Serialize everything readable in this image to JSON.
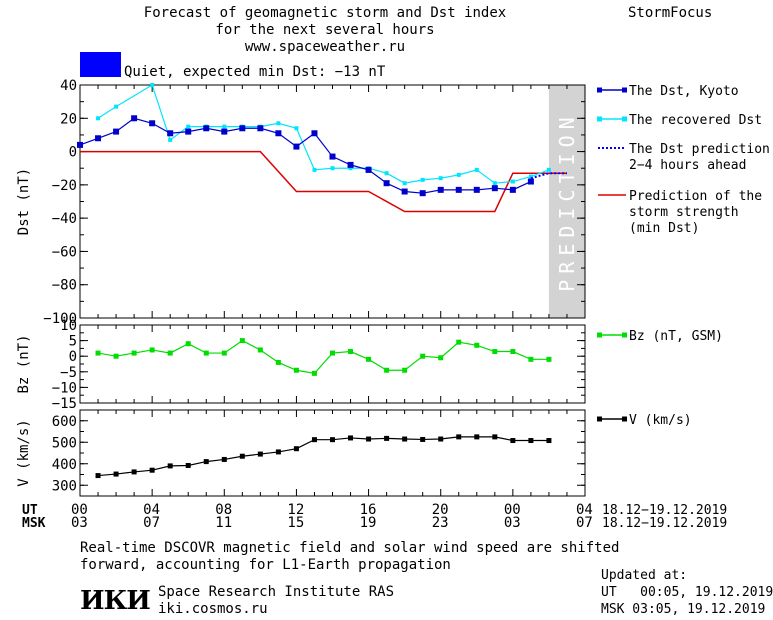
{
  "header": {
    "title_line1": "Forecast of geomagnetic storm and Dst index",
    "title_line2": "for the next several hours",
    "url": "www.spaceweather.ru",
    "brand": "StormFocus"
  },
  "status": {
    "text": "Quiet, expected min Dst: −13 nT",
    "color": "#0000ff"
  },
  "legends": {
    "dst_kyoto": "The Dst, Kyoto",
    "recovered": "The recovered Dst",
    "prediction_l1": "The Dst prediction",
    "prediction_l2": "2−4 hours ahead",
    "storm_l1": "Prediction of the",
    "storm_l2": "storm strength",
    "storm_l3": "(min Dst)",
    "bz": "Bz (nT, GSM)",
    "v": "V (km/s)"
  },
  "prediction_label": "PREDICTION",
  "time_axis": {
    "ut_label": "UT",
    "msk_label": "MSK",
    "ut_ticks": [
      "00",
      "04",
      "08",
      "12",
      "16",
      "20",
      "00",
      "04"
    ],
    "msk_ticks": [
      "03",
      "07",
      "11",
      "15",
      "19",
      "23",
      "03",
      "07"
    ],
    "range_ut": "18.12−19.12.2019",
    "range_msk": "18.12−19.12.2019"
  },
  "footer": {
    "note_l1": "Real-time DSCOVR magnetic field and solar wind speed are shifted",
    "note_l2": "forward, accounting for L1-Earth propagation",
    "institute": "Space Research Institute RAS",
    "site": "iki.cosmos.ru",
    "logo": "ИКИ",
    "updated_label": "Updated at:",
    "updated_ut": "UT   00:05, 19.12.2019",
    "updated_msk": "MSK 03:05, 19.12.2019"
  },
  "colors": {
    "kyoto": "#0000cc",
    "recovered": "#00e5ff",
    "prediction": "#0000ff",
    "storm": "#dd0000",
    "bz": "#00dd00",
    "v": "#000000",
    "shade": "#d3d3d3"
  },
  "chart_data": [
    {
      "type": "line",
      "ylabel": "Dst (nT)",
      "xlim": [
        0,
        28
      ],
      "ylim": [
        -100,
        40
      ],
      "yticks": [
        40,
        20,
        0,
        -20,
        -40,
        -60,
        -80,
        -100
      ],
      "prediction_region": [
        26,
        28
      ],
      "series": [
        {
          "name": "The Dst, Kyoto",
          "x": [
            0,
            1,
            2,
            3,
            4,
            5,
            6,
            7,
            8,
            9,
            10,
            11,
            12,
            13,
            14,
            15,
            16,
            17,
            18,
            19,
            20,
            21,
            22,
            23,
            24,
            25
          ],
          "y": [
            4,
            8,
            12,
            20,
            17,
            11,
            12,
            14,
            12,
            14,
            14,
            11,
            3,
            11,
            -3,
            -8,
            -11,
            -19,
            -24,
            -25,
            -23,
            -23,
            -23,
            -22,
            -23,
            -18
          ]
        },
        {
          "name": "The recovered Dst",
          "x": [
            1,
            2,
            4,
            5,
            6,
            7,
            8,
            9,
            10,
            11,
            12,
            13,
            14,
            15,
            16,
            17,
            18,
            19,
            20,
            21,
            22,
            23,
            24,
            25,
            26
          ],
          "y": [
            20,
            27,
            40,
            7,
            15,
            15,
            15,
            15,
            15,
            17,
            14,
            -11,
            -10,
            -10,
            -10,
            -13,
            -19,
            -17,
            -16,
            -14,
            -11,
            -19,
            -18,
            -15,
            -11
          ]
        },
        {
          "name": "The Dst prediction 2−4 hours ahead",
          "x": [
            25,
            26,
            27
          ],
          "y": [
            -16,
            -13,
            -13
          ]
        },
        {
          "name": "Prediction of the storm strength (min Dst)",
          "x": [
            0,
            10,
            12,
            16,
            18,
            23,
            24,
            27
          ],
          "y": [
            0,
            0,
            -24,
            -24,
            -36,
            -36,
            -13,
            -13
          ]
        }
      ]
    },
    {
      "type": "line",
      "ylabel": "Bz (nT)",
      "xlim": [
        0,
        28
      ],
      "ylim": [
        -15,
        10
      ],
      "yticks": [
        10,
        5,
        0,
        -5,
        -10,
        -15
      ],
      "series": [
        {
          "name": "Bz (nT, GSM)",
          "x": [
            1,
            2,
            3,
            4,
            5,
            6,
            7,
            8,
            9,
            10,
            11,
            12,
            13,
            14,
            15,
            16,
            17,
            18,
            19,
            20,
            21,
            22,
            23,
            24,
            25,
            26
          ],
          "y": [
            1,
            0,
            1,
            2,
            1,
            4,
            1,
            1,
            5,
            2,
            -2,
            -4.5,
            -5.5,
            1,
            1.5,
            -1,
            -4.5,
            -4.5,
            0,
            -0.5,
            4.5,
            3.5,
            1.5,
            1.5,
            -1,
            -1
          ]
        }
      ]
    },
    {
      "type": "line",
      "ylabel": "V (km/s)",
      "xlim": [
        0,
        28
      ],
      "ylim": [
        250,
        650
      ],
      "yticks": [
        600,
        500,
        400,
        300
      ],
      "series": [
        {
          "name": "V (km/s)",
          "x": [
            1,
            2,
            3,
            4,
            5,
            6,
            7,
            8,
            9,
            10,
            11,
            12,
            13,
            14,
            15,
            16,
            17,
            18,
            19,
            20,
            21,
            22,
            23,
            24,
            25,
            26
          ],
          "y": [
            345,
            352,
            362,
            370,
            390,
            392,
            410,
            420,
            435,
            445,
            455,
            470,
            512,
            512,
            520,
            515,
            518,
            515,
            513,
            515,
            525,
            525,
            525,
            508,
            508,
            508
          ]
        }
      ]
    }
  ]
}
